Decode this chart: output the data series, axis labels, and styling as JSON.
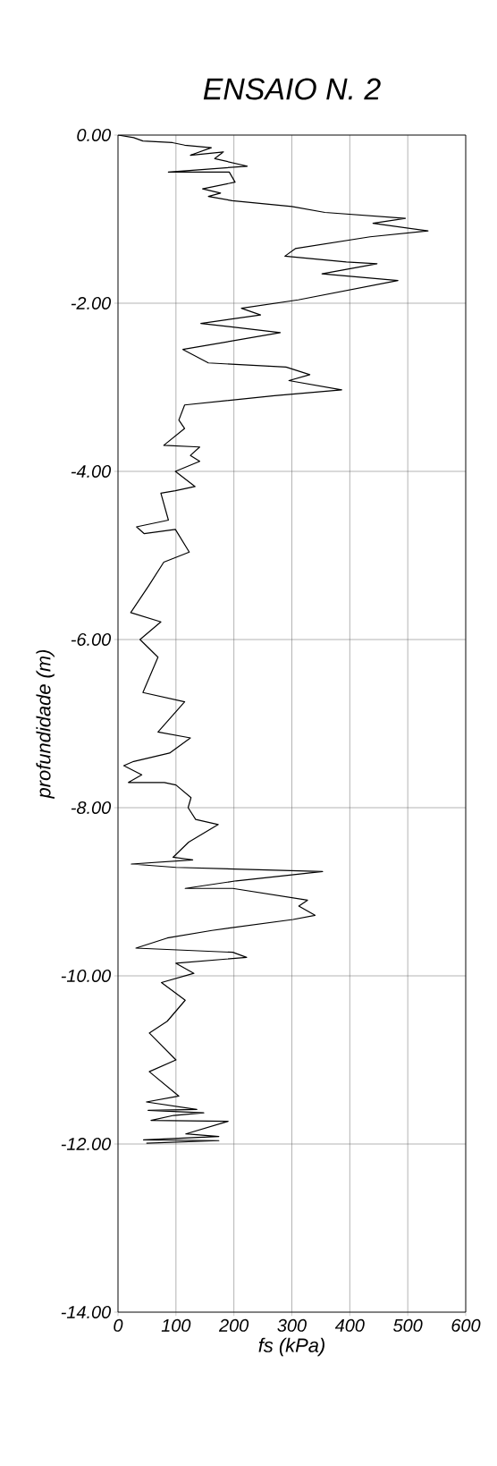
{
  "chart_data": {
    "type": "line",
    "title": "ENSAIO N. 2",
    "xlabel": "fs (kPa)",
    "ylabel": "profundidade (m)",
    "color": "#000000",
    "grid": true,
    "xlim": [
      0,
      600
    ],
    "xticks": [
      0,
      100,
      200,
      300,
      400,
      500,
      600
    ],
    "ylim": [
      -14,
      0
    ],
    "yticks": [
      {
        "value": 0,
        "label": "0.00"
      },
      {
        "value": -2,
        "label": "-2.00"
      },
      {
        "value": -4,
        "label": "-4.00"
      },
      {
        "value": -6,
        "label": "-6.00"
      },
      {
        "value": -8,
        "label": "-8.00"
      },
      {
        "value": -10,
        "label": "-10.00"
      },
      {
        "value": -12,
        "label": "-12.00"
      },
      {
        "value": -14,
        "label": "-14.00"
      }
    ],
    "x": [
      0,
      27,
      43,
      94,
      115,
      161,
      125,
      182,
      167,
      223,
      87,
      192,
      202,
      146,
      177,
      156,
      197,
      300,
      357,
      496,
      440,
      535,
      435,
      306,
      288,
      394,
      447,
      352,
      483,
      311,
      213,
      246,
      143,
      280,
      112,
      156,
      290,
      331,
      295,
      386,
      270,
      115,
      105,
      115,
      79,
      141,
      125,
      141,
      99,
      133,
      99,
      74,
      87,
      32,
      45,
      99,
      123,
      79,
      53,
      22,
      74,
      38,
      69,
      43,
      115,
      69,
      125,
      89,
      27,
      10,
      41,
      18,
      80,
      100,
      126,
      121,
      134,
      173,
      122,
      95,
      129,
      23,
      100,
      353,
      204,
      116,
      198,
      327,
      312,
      340,
      302,
      162,
      85,
      31,
      198,
      222,
      100,
      131,
      75,
      116,
      85,
      54,
      100,
      54,
      105,
      49,
      136,
      52,
      148,
      96,
      57,
      190,
      117,
      174,
      44,
      174,
      49
    ],
    "values": [
      0,
      -0.03,
      -0.07,
      -0.09,
      -0.12,
      -0.15,
      -0.24,
      -0.2,
      -0.28,
      -0.37,
      -0.44,
      -0.44,
      -0.56,
      -0.64,
      -0.69,
      -0.73,
      -0.78,
      -0.85,
      -0.92,
      -0.99,
      -1.05,
      -1.14,
      -1.21,
      -1.35,
      -1.44,
      -1.51,
      -1.53,
      -1.65,
      -1.73,
      -1.96,
      -2.06,
      -2.14,
      -2.24,
      -2.35,
      -2.55,
      -2.71,
      -2.76,
      -2.85,
      -2.92,
      -3.03,
      -3.1,
      -3.21,
      -3.39,
      -3.49,
      -3.69,
      -3.71,
      -3.81,
      -3.88,
      -4.0,
      -4.18,
      -4.23,
      -4.26,
      -4.58,
      -4.66,
      -4.74,
      -4.69,
      -4.96,
      -5.08,
      -5.36,
      -5.68,
      -5.79,
      -6.0,
      -6.21,
      -6.63,
      -6.74,
      -7.1,
      -7.17,
      -7.35,
      -7.45,
      -7.5,
      -7.61,
      -7.7,
      -7.7,
      -7.73,
      -7.88,
      -8.0,
      -8.14,
      -8.2,
      -8.41,
      -8.59,
      -8.62,
      -8.67,
      -8.71,
      -8.76,
      -8.87,
      -8.96,
      -8.96,
      -9.1,
      -9.17,
      -9.28,
      -9.33,
      -9.46,
      -9.55,
      -9.67,
      -9.72,
      -9.78,
      -9.85,
      -9.97,
      -10.08,
      -10.29,
      -10.54,
      -10.68,
      -11.0,
      -11.14,
      -11.43,
      -11.5,
      -11.59,
      -11.6,
      -11.63,
      -11.66,
      -11.72,
      -11.73,
      -11.88,
      -11.91,
      -11.95,
      -11.96,
      -11.99
    ]
  }
}
